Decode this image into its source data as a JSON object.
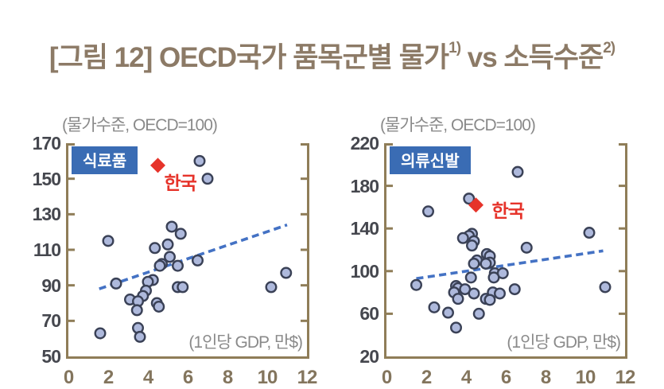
{
  "title": {
    "text": "[그림 12] OECD국가 품목군별 물가",
    "sup1": "1)",
    "mid": " vs 소득수준",
    "sup2": "2)"
  },
  "colors": {
    "title_text": "#8c7a66",
    "frame": "#8f7d58",
    "badge_bg": "#3a6cb4",
    "badge_text": "#ffffff",
    "dot_fill": "#aeb9dc",
    "dot_stroke": "#3a4156",
    "trend_line": "#4472c4",
    "korea_red": "#e6332a",
    "y_tick_text": "#45474e",
    "x_tick_text": "#83755d",
    "unit_text": "#8a8a8a"
  },
  "chart_data": [
    {
      "type": "scatter",
      "title": "식료품",
      "unit_top": "(물가수준, OECD=100)",
      "unit_bottom": "(1인당 GDP, 만$)",
      "xlabel": "1인당 GDP, 만$",
      "ylabel": "물가수준, OECD=100",
      "xlim": [
        0,
        12
      ],
      "ylim": [
        50,
        170
      ],
      "x_ticks": [
        0,
        2,
        4,
        6,
        8,
        10,
        12
      ],
      "y_ticks": [
        170,
        150,
        130,
        110,
        90,
        70,
        50
      ],
      "grid": false,
      "korea": {
        "label": "한국",
        "x": 4.5,
        "y": 157.5
      },
      "trend": {
        "x1": 1.55,
        "y1": 88,
        "x2": 11.0,
        "y2": 124
      },
      "points": [
        [
          6.6,
          160
        ],
        [
          7.0,
          150
        ],
        [
          5.2,
          123
        ],
        [
          5.65,
          119
        ],
        [
          2.0,
          115
        ],
        [
          5.0,
          113
        ],
        [
          4.35,
          111
        ],
        [
          5.1,
          106
        ],
        [
          6.5,
          104
        ],
        [
          4.7,
          102
        ],
        [
          4.6,
          101
        ],
        [
          5.5,
          101
        ],
        [
          10.95,
          97
        ],
        [
          4.25,
          93
        ],
        [
          4.0,
          92
        ],
        [
          2.4,
          91
        ],
        [
          5.5,
          89
        ],
        [
          5.75,
          89
        ],
        [
          10.2,
          89
        ],
        [
          3.9,
          87
        ],
        [
          3.75,
          84
        ],
        [
          3.1,
          82
        ],
        [
          3.5,
          81
        ],
        [
          4.45,
          80
        ],
        [
          4.55,
          78
        ],
        [
          3.45,
          76
        ],
        [
          3.5,
          66
        ],
        [
          1.6,
          63
        ],
        [
          3.6,
          61
        ]
      ]
    },
    {
      "type": "scatter",
      "title": "의류신발",
      "unit_top": "(물가수준, OECD=100)",
      "unit_bottom": "(1인당 GDP, 만$)",
      "xlabel": "1인당 GDP, 만$",
      "ylabel": "물가수준, OECD=100",
      "xlim": [
        0,
        12
      ],
      "ylim": [
        20,
        220
      ],
      "x_ticks": [
        0,
        2,
        4,
        6,
        8,
        10,
        12
      ],
      "y_ticks": [
        220,
        180,
        140,
        100,
        60,
        20
      ],
      "grid": false,
      "korea": {
        "label": "한국",
        "x": 4.5,
        "y": 162
      },
      "trend": {
        "x1": 1.5,
        "y1": 93,
        "x2": 10.9,
        "y2": 119
      },
      "points": [
        [
          6.6,
          193
        ],
        [
          4.15,
          168
        ],
        [
          2.1,
          156
        ],
        [
          10.2,
          136
        ],
        [
          4.3,
          135
        ],
        [
          4.15,
          133
        ],
        [
          3.85,
          131
        ],
        [
          4.4,
          128
        ],
        [
          4.3,
          124
        ],
        [
          7.05,
          122
        ],
        [
          5.05,
          116
        ],
        [
          5.2,
          114
        ],
        [
          4.55,
          110
        ],
        [
          5.2,
          108
        ],
        [
          4.4,
          107
        ],
        [
          5.0,
          107
        ],
        [
          5.45,
          98
        ],
        [
          5.85,
          98
        ],
        [
          4.25,
          94
        ],
        [
          5.4,
          94
        ],
        [
          1.5,
          87
        ],
        [
          3.5,
          86
        ],
        [
          11.0,
          85
        ],
        [
          3.6,
          84
        ],
        [
          3.95,
          83
        ],
        [
          6.45,
          83
        ],
        [
          3.4,
          80
        ],
        [
          5.35,
          80
        ],
        [
          4.4,
          79
        ],
        [
          5.7,
          79
        ],
        [
          3.6,
          74
        ],
        [
          5.0,
          74
        ],
        [
          5.2,
          73
        ],
        [
          2.4,
          66
        ],
        [
          3.1,
          61
        ],
        [
          4.65,
          60
        ],
        [
          3.5,
          47
        ]
      ]
    }
  ]
}
